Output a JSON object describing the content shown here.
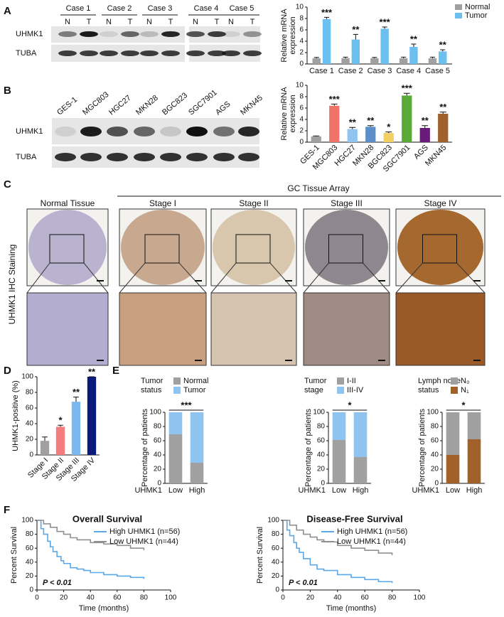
{
  "panel_labels": [
    "A",
    "B",
    "C",
    "D",
    "E",
    "F"
  ],
  "blot_a": {
    "cases": [
      "Case 1",
      "Case 2",
      "Case 3",
      "Case 4",
      "Case 5"
    ],
    "lanes": [
      "N",
      "T",
      "N",
      "T",
      "N",
      "T",
      "N",
      "T",
      "N",
      "T"
    ],
    "rows": [
      "UHMK1",
      "TUBA"
    ]
  },
  "blot_b": {
    "cell_lines": [
      "GES-1",
      "MGC803",
      "HGC27",
      "MKN28",
      "BGC823",
      "SGC7901",
      "AGS",
      "MKN45"
    ],
    "rows": [
      "UHMK1",
      "TUBA"
    ]
  },
  "ihc": {
    "group_label": "GC Tissue Array",
    "columns": [
      "Normal Tissue",
      "Stage I",
      "Stage II",
      "Stage III",
      "Stage IV"
    ],
    "side_label": "UHMK1 IHC Staining"
  },
  "chart_data": [
    {
      "type": "bar",
      "ylabel": [
        "Relative mRNA",
        "expression"
      ],
      "categories": [
        "Case 1",
        "Case 2",
        "Case 3",
        "Case 4",
        "Case 5"
      ],
      "series": [
        {
          "name": "Normal",
          "color": "#a0a0a0",
          "values": [
            1,
            1,
            1,
            1,
            1
          ],
          "errors": [
            0.15,
            0.2,
            0.15,
            0.2,
            0.2
          ]
        },
        {
          "name": "Tumor",
          "color": "#6cc0f0",
          "values": [
            7.9,
            4.3,
            6.2,
            3.0,
            2.2
          ],
          "errors": [
            0.3,
            0.9,
            0.3,
            0.5,
            0.3
          ]
        }
      ],
      "significance": [
        "***",
        "**",
        "***",
        "**",
        "**"
      ],
      "ylim": [
        0,
        10
      ],
      "yticks": [
        0,
        2,
        4,
        6,
        8,
        10
      ]
    },
    {
      "type": "bar",
      "ylabel": [
        "Relative mRNA",
        "expression"
      ],
      "categories": [
        "GES-1",
        "MGC803",
        "HGC27",
        "MKN28",
        "BGC823",
        "SGC7901",
        "AGS",
        "MKN45"
      ],
      "values": [
        1,
        6.4,
        2.3,
        2.7,
        1.6,
        8.2,
        2.5,
        5.0
      ],
      "errors": [
        0.1,
        0.3,
        0.3,
        0.2,
        0.2,
        0.4,
        0.4,
        0.3
      ],
      "colors": [
        "#a0a0a0",
        "#f0736a",
        "#8fc3f0",
        "#5b8fc7",
        "#f0d060",
        "#5aaa3a",
        "#6a1b7a",
        "#a0622a"
      ],
      "significance": [
        null,
        "***",
        "**",
        "**",
        "*",
        "***",
        "**",
        "**"
      ],
      "ylim": [
        0,
        10
      ],
      "yticks": [
        0,
        2,
        4,
        6,
        8,
        10
      ]
    },
    {
      "type": "bar",
      "ylabel": "UHMK1-positive (%)",
      "categories": [
        "Stage I",
        "Stage II",
        "Stage III",
        "Stage IV"
      ],
      "values": [
        18,
        36,
        68,
        100
      ],
      "errors": [
        5,
        2,
        6,
        0
      ],
      "colors": [
        "#a0a0a0",
        "#f47c7c",
        "#7ab8f0",
        "#0a1a7a"
      ],
      "significance": [
        null,
        "*",
        "**",
        "**"
      ],
      "ylim": [
        0,
        100
      ],
      "yticks": [
        0,
        20,
        40,
        60,
        80,
        100
      ]
    },
    {
      "type": "stacked",
      "ylabel": "Percentage of patients",
      "xlabel": "UHMK1",
      "legend_title": [
        "Tumor",
        "status"
      ],
      "categories": [
        "Low",
        "High"
      ],
      "series": [
        {
          "name": "Normal",
          "color": "#a0a0a0",
          "values": [
            69,
            29
          ]
        },
        {
          "name": "Tumor",
          "color": "#8fc3f0",
          "values": [
            31,
            71
          ]
        }
      ],
      "significance": "***",
      "ylim": [
        0,
        100
      ],
      "yticks": [
        0,
        20,
        40,
        60,
        80,
        100
      ]
    },
    {
      "type": "stacked",
      "ylabel": "Percentage of patients",
      "xlabel": "UHMK1",
      "legend_title": [
        "Tumor",
        "stage"
      ],
      "categories": [
        "Low",
        "High"
      ],
      "series": [
        {
          "name": "I-II",
          "color": "#a0a0a0",
          "values": [
            61,
            37
          ]
        },
        {
          "name": "III-IV",
          "color": "#8fc3f0",
          "values": [
            39,
            63
          ]
        }
      ],
      "significance": "*",
      "ylim": [
        0,
        100
      ],
      "yticks": [
        0,
        20,
        40,
        60,
        80,
        100
      ]
    },
    {
      "type": "stacked",
      "ylabel": "Percentage of patients",
      "xlabel": "UHMK1",
      "legend_title": [
        "Lymph node",
        "status"
      ],
      "categories": [
        "Low",
        "High"
      ],
      "series": [
        {
          "name": "N₁",
          "color": "#a0622a",
          "values": [
            40,
            62
          ]
        },
        {
          "name": "N₀",
          "color": "#a0a0a0",
          "values": [
            60,
            38
          ]
        }
      ],
      "significance": "*",
      "ylim": [
        0,
        100
      ],
      "yticks": [
        0,
        20,
        40,
        60,
        80,
        100
      ]
    },
    {
      "type": "line",
      "title": "Overall Survival",
      "xlabel": "Time (months)",
      "ylabel": "Percent Survival",
      "annotation": "P < 0.01",
      "series": [
        {
          "name": "High UHMK1 (n=56)",
          "color": "#5aa8e8",
          "x": [
            0,
            3,
            5,
            8,
            10,
            12,
            15,
            18,
            20,
            25,
            30,
            35,
            40,
            50,
            60,
            70,
            80
          ],
          "values": [
            100,
            88,
            80,
            70,
            62,
            55,
            48,
            42,
            38,
            32,
            30,
            28,
            25,
            22,
            20,
            18,
            16
          ]
        },
        {
          "name": "Low UHMK1 (n=44)",
          "color": "#909090",
          "x": [
            0,
            5,
            10,
            15,
            20,
            25,
            30,
            40,
            50,
            60,
            70,
            80
          ],
          "values": [
            100,
            95,
            90,
            84,
            80,
            75,
            72,
            68,
            66,
            64,
            60,
            57
          ]
        }
      ],
      "xlim": [
        0,
        100
      ],
      "xticks": [
        0,
        20,
        40,
        60,
        80,
        100
      ],
      "ylim": [
        0,
        100
      ],
      "yticks": [
        0,
        20,
        40,
        60,
        80,
        100
      ]
    },
    {
      "type": "line",
      "title": "Disease-Free Survival",
      "xlabel": "Time (months)",
      "ylabel": "Percent Survival",
      "annotation": "P < 0.01",
      "series": [
        {
          "name": "High UHMK1 (n=56)",
          "color": "#5aa8e8",
          "x": [
            0,
            3,
            5,
            8,
            10,
            12,
            15,
            20,
            25,
            30,
            40,
            50,
            60,
            70,
            80
          ],
          "values": [
            100,
            86,
            78,
            68,
            60,
            54,
            45,
            36,
            30,
            28,
            22,
            18,
            15,
            12,
            10
          ]
        },
        {
          "name": "Low UHMK1 (n=44)",
          "color": "#909090",
          "x": [
            0,
            5,
            10,
            15,
            20,
            25,
            30,
            40,
            50,
            60,
            70,
            80
          ],
          "values": [
            100,
            93,
            86,
            80,
            76,
            72,
            69,
            64,
            60,
            57,
            53,
            50
          ]
        }
      ],
      "xlim": [
        0,
        100
      ],
      "xticks": [
        0,
        20,
        40,
        60,
        80,
        100
      ],
      "ylim": [
        0,
        100
      ],
      "yticks": [
        0,
        20,
        40,
        60,
        80,
        100
      ]
    }
  ]
}
